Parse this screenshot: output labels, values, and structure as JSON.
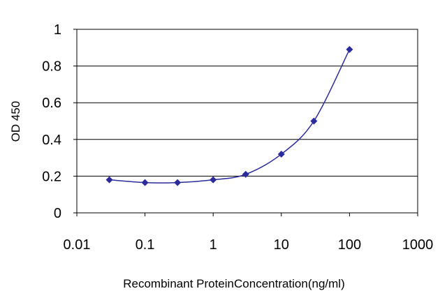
{
  "chart_data": {
    "type": "line",
    "xlabel": "Recombinant ProteinConcentration(ng/ml)",
    "ylabel": "OD 450",
    "x_scale": "log",
    "xlim": [
      0.01,
      1000
    ],
    "ylim": [
      0,
      1
    ],
    "x_ticks": [
      "0.01",
      "0.1",
      "1",
      "10",
      "100",
      "1000"
    ],
    "y_ticks": [
      "0",
      "0.2",
      "0.4",
      "0.6",
      "0.8",
      "1"
    ],
    "grid": "horizontal",
    "legend": "none",
    "series": [
      {
        "color": "#2b2b9b",
        "marker": "diamond",
        "x": [
          0.03,
          0.1,
          0.3,
          1,
          3,
          10,
          30,
          100
        ],
        "y": [
          0.18,
          0.165,
          0.165,
          0.18,
          0.21,
          0.32,
          0.5,
          0.89
        ]
      }
    ]
  }
}
